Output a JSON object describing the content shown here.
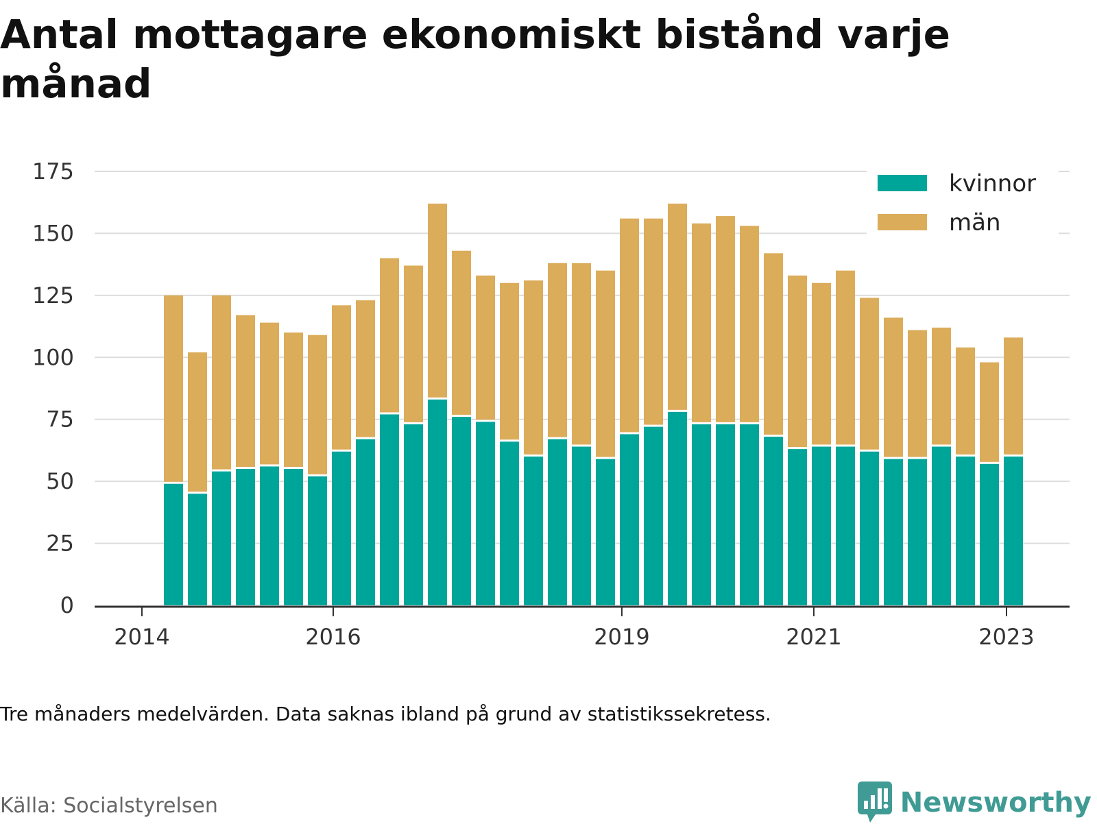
{
  "header": {
    "title": "Antal mottagare ekonomiskt bistånd varje månad"
  },
  "footer": {
    "note": "Tre månaders medelvärden. Data saknas ibland på grund av statistikssekretess.",
    "source": "Källa: Socialstyrelsen",
    "brand": "Newsworthy",
    "brand_icon": "bar-chart-logo-icon"
  },
  "colors": {
    "kvinnor": "#00a59a",
    "man": "#dbac5a",
    "grid": "#dddddd",
    "axis": "#333333",
    "brand": "#3f9b94"
  },
  "chart_data": {
    "type": "bar",
    "stacked": true,
    "x_ticks": [
      "2014",
      "2016",
      "2019",
      "2021",
      "2023"
    ],
    "y_ticks": [
      0,
      25,
      50,
      75,
      100,
      125,
      150,
      175
    ],
    "ylim": [
      0,
      175
    ],
    "grid": true,
    "legend_position": "top-right",
    "series": [
      {
        "name": "kvinnor",
        "values": [
          49,
          45,
          54,
          55,
          56,
          55,
          52,
          62,
          67,
          77,
          73,
          83,
          76,
          74,
          66,
          60,
          67,
          64,
          59,
          69,
          72,
          78,
          73,
          73,
          73,
          68,
          63,
          64,
          64,
          62,
          59,
          59,
          64,
          60,
          57,
          60
        ]
      },
      {
        "name": "män",
        "values": [
          76,
          57,
          71,
          62,
          58,
          55,
          57,
          59,
          56,
          63,
          64,
          79,
          67,
          59,
          64,
          71,
          71,
          74,
          76,
          87,
          84,
          84,
          81,
          84,
          80,
          74,
          70,
          66,
          71,
          62,
          57,
          52,
          48,
          44,
          41,
          48
        ]
      }
    ]
  }
}
